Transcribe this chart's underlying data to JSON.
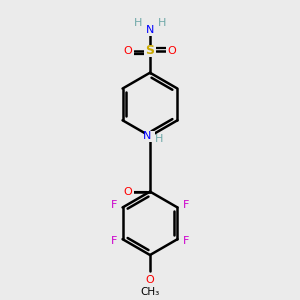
{
  "bg_color": "#ebebeb",
  "atom_colors": {
    "C": "#000000",
    "H": "#6fa8a8",
    "N": "#0000ff",
    "O": "#ff0000",
    "S": "#ccaa00",
    "F": "#cc00cc"
  },
  "bond_color": "#000000",
  "bond_width": 1.8,
  "fig_width": 3.0,
  "fig_height": 3.0,
  "dpi": 100
}
